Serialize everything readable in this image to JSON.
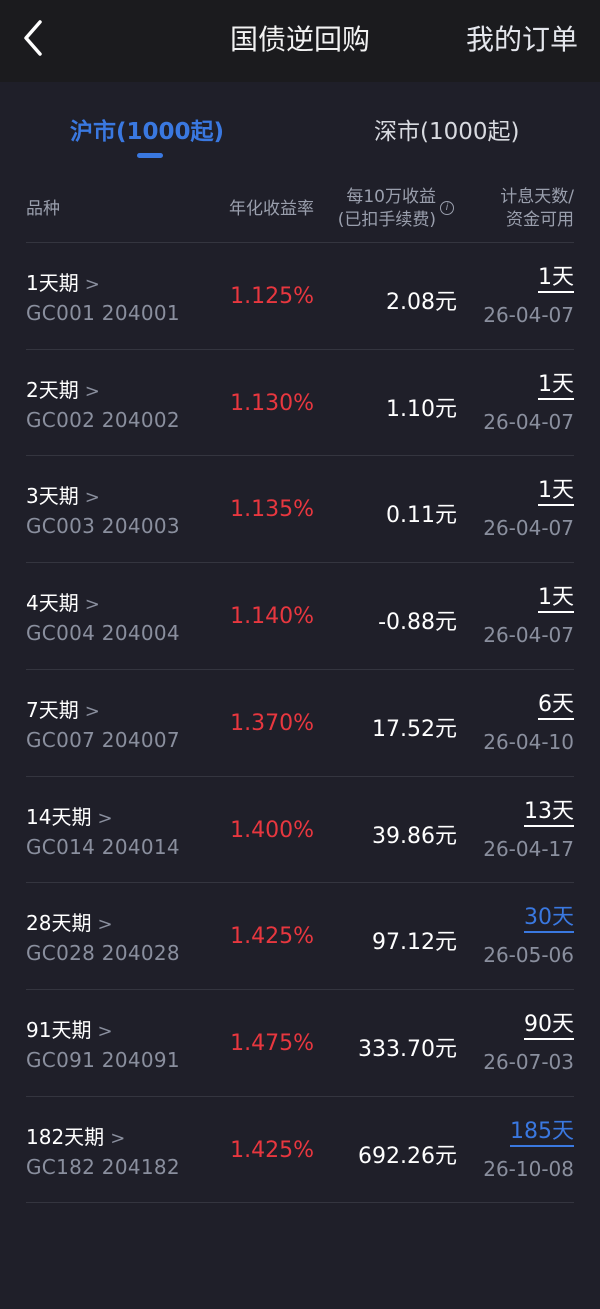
{
  "header": {
    "title": "国债逆回购",
    "orders": "我的订单"
  },
  "tabs": [
    {
      "label": "沪市(1000起)",
      "active": true
    },
    {
      "label": "深市(1000起)",
      "active": false
    }
  ],
  "columns": {
    "variety": "品种",
    "rate": "年化收益率",
    "gain_line1": "每10万收益",
    "gain_line2": "(已扣手续费)",
    "days_line1": "计息天数/",
    "days_line2": "资金可用"
  },
  "colors": {
    "accent": "#3a78e0",
    "rate": "#e8373f"
  },
  "rows": [
    {
      "name": "1天期",
      "code": "GC001 204001",
      "rate": "1.125%",
      "gain": "2.08元",
      "days": "1天",
      "date": "26-04-07",
      "highlight": false
    },
    {
      "name": "2天期",
      "code": "GC002 204002",
      "rate": "1.130%",
      "gain": "1.10元",
      "days": "1天",
      "date": "26-04-07",
      "highlight": false
    },
    {
      "name": "3天期",
      "code": "GC003 204003",
      "rate": "1.135%",
      "gain": "0.11元",
      "days": "1天",
      "date": "26-04-07",
      "highlight": false
    },
    {
      "name": "4天期",
      "code": "GC004 204004",
      "rate": "1.140%",
      "gain": "-0.88元",
      "days": "1天",
      "date": "26-04-07",
      "highlight": false
    },
    {
      "name": "7天期",
      "code": "GC007 204007",
      "rate": "1.370%",
      "gain": "17.52元",
      "days": "6天",
      "date": "26-04-10",
      "highlight": false
    },
    {
      "name": "14天期",
      "code": "GC014 204014",
      "rate": "1.400%",
      "gain": "39.86元",
      "days": "13天",
      "date": "26-04-17",
      "highlight": false
    },
    {
      "name": "28天期",
      "code": "GC028 204028",
      "rate": "1.425%",
      "gain": "97.12元",
      "days": "30天",
      "date": "26-05-06",
      "highlight": true
    },
    {
      "name": "91天期",
      "code": "GC091 204091",
      "rate": "1.475%",
      "gain": "333.70元",
      "days": "90天",
      "date": "26-07-03",
      "highlight": false
    },
    {
      "name": "182天期",
      "code": "GC182 204182",
      "rate": "1.425%",
      "gain": "692.26元",
      "days": "185天",
      "date": "26-10-08",
      "highlight": true
    }
  ]
}
